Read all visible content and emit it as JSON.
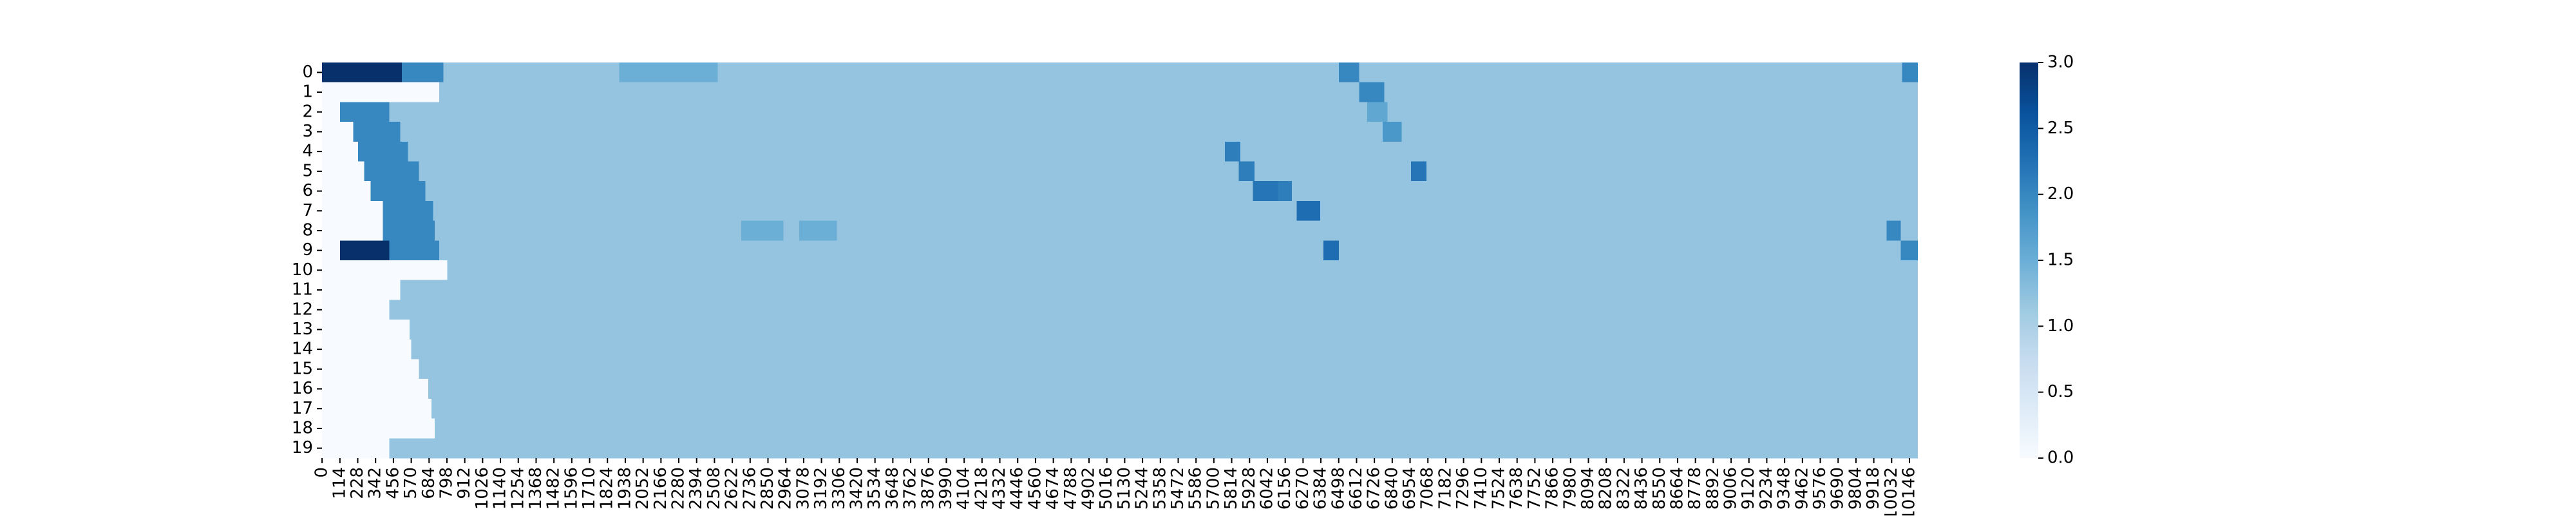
{
  "chart_data": {
    "type": "heatmap",
    "cmap": "Blues",
    "categories": [
      "0",
      "1",
      "2",
      "3",
      "4",
      "5",
      "6",
      "7",
      "8",
      "9",
      "10",
      "11",
      "12",
      "13",
      "14",
      "15",
      "16",
      "17",
      "18",
      "19"
    ],
    "xlim": [
      0,
      10200
    ],
    "xticks": [
      0,
      114,
      228,
      342,
      456,
      570,
      684,
      798,
      912,
      1026,
      1140,
      1254,
      1368,
      1482,
      1596,
      1710,
      1824,
      1938,
      2052,
      2166,
      2280,
      2394,
      2508,
      2622,
      2736,
      2850,
      2964,
      3078,
      3192,
      3306,
      3420,
      3534,
      3648,
      3762,
      3876,
      3990,
      4104,
      4218,
      4332,
      4446,
      4560,
      4674,
      4788,
      4902,
      5016,
      5130,
      5244,
      5358,
      5472,
      5586,
      5700,
      5814,
      5928,
      6042,
      6156,
      6270,
      6384,
      6498,
      6612,
      6726,
      6840,
      6954,
      7068,
      7182,
      7296,
      7410,
      7524,
      7638,
      7752,
      7866,
      7980,
      8094,
      8208,
      8322,
      8436,
      8550,
      8664,
      8778,
      8892,
      9006,
      9120,
      9234,
      9348,
      9462,
      9576,
      9690,
      9804,
      9918,
      10032,
      10146
    ],
    "clim": [
      0,
      3
    ],
    "cticks": [
      {
        "value": 0,
        "label": "0.0"
      },
      {
        "value": 0.5,
        "label": "0.5"
      },
      {
        "value": 1,
        "label": "1.0"
      },
      {
        "value": 1.5,
        "label": "1.5"
      },
      {
        "value": 2,
        "label": "2.0"
      },
      {
        "value": 2.5,
        "label": "2.5"
      },
      {
        "value": 3,
        "label": "3.0"
      }
    ],
    "cells": [
      [
        [
          0,
          10200,
          1.2
        ],
        [
          0,
          510,
          3
        ],
        [
          510,
          775,
          2
        ],
        [
          1900,
          2530,
          1.5
        ],
        [
          6500,
          6630,
          2
        ],
        [
          10100,
          10200,
          2
        ]
      ],
      [
        [
          0,
          10200,
          1.2
        ],
        [
          0,
          750,
          0
        ],
        [
          6630,
          6790,
          2
        ]
      ],
      [
        [
          0,
          10200,
          1.2
        ],
        [
          0,
          115,
          0
        ],
        [
          115,
          430,
          2
        ],
        [
          6680,
          6810,
          1.6
        ]
      ],
      [
        [
          0,
          10200,
          1.2
        ],
        [
          0,
          200,
          0
        ],
        [
          200,
          500,
          2
        ],
        [
          6780,
          6900,
          1.8
        ]
      ],
      [
        [
          0,
          10200,
          1.2
        ],
        [
          0,
          230,
          0
        ],
        [
          230,
          550,
          2
        ],
        [
          5770,
          5870,
          2.1
        ]
      ],
      [
        [
          0,
          10200,
          1.2
        ],
        [
          0,
          270,
          0
        ],
        [
          270,
          620,
          2
        ],
        [
          5860,
          5960,
          2.1
        ],
        [
          6960,
          7060,
          2.2
        ]
      ],
      [
        [
          0,
          10200,
          1.2
        ],
        [
          0,
          310,
          0
        ],
        [
          310,
          660,
          2
        ],
        [
          5950,
          6110,
          2.2
        ],
        [
          6110,
          6200,
          2.1
        ]
      ],
      [
        [
          0,
          10200,
          1.2
        ],
        [
          0,
          390,
          0
        ],
        [
          390,
          710,
          2
        ],
        [
          6230,
          6380,
          2.3
        ]
      ],
      [
        [
          0,
          10200,
          1.2
        ],
        [
          0,
          390,
          0
        ],
        [
          390,
          720,
          2
        ],
        [
          2680,
          2950,
          1.5
        ],
        [
          3050,
          3290,
          1.5
        ],
        [
          10000,
          10090,
          2
        ]
      ],
      [
        [
          0,
          10200,
          1.2
        ],
        [
          0,
          115,
          0
        ],
        [
          115,
          430,
          3
        ],
        [
          430,
          750,
          2
        ],
        [
          6400,
          6500,
          2.3
        ],
        [
          10090,
          10200,
          2
        ]
      ],
      [
        [
          0,
          10200,
          1.2
        ],
        [
          0,
          800,
          0
        ]
      ],
      [
        [
          0,
          10200,
          1.2
        ],
        [
          0,
          500,
          0
        ]
      ],
      [
        [
          0,
          10200,
          1.2
        ],
        [
          0,
          430,
          0
        ]
      ],
      [
        [
          0,
          10200,
          1.2
        ],
        [
          0,
          560,
          0
        ]
      ],
      [
        [
          0,
          10200,
          1.2
        ],
        [
          0,
          570,
          0
        ]
      ],
      [
        [
          0,
          10200,
          1.2
        ],
        [
          0,
          620,
          0
        ]
      ],
      [
        [
          0,
          10200,
          1.2
        ],
        [
          0,
          680,
          0
        ]
      ],
      [
        [
          0,
          10200,
          1.2
        ],
        [
          0,
          700,
          0
        ]
      ],
      [
        [
          0,
          10200,
          1.2
        ],
        [
          0,
          720,
          0
        ]
      ],
      [
        [
          0,
          10200,
          1.2
        ],
        [
          0,
          430,
          0
        ]
      ]
    ]
  }
}
